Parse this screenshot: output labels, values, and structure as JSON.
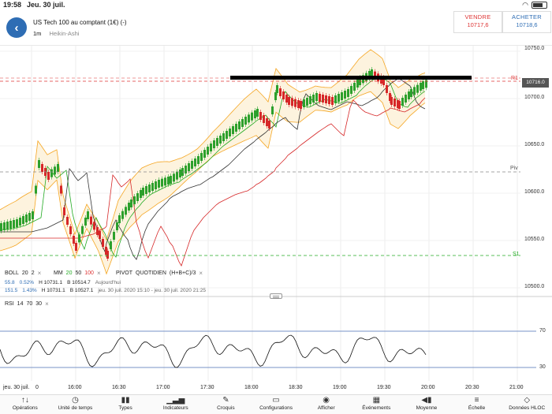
{
  "status": {
    "time": "19:58",
    "date": "Jeu. 30 juil."
  },
  "header": {
    "instrument": "US Tech 100 au comptant (1€) (-)",
    "timeframe": "1m",
    "chart_style": "Heikin-Ashi",
    "sell_label": "VENDRE",
    "sell_price": "10717,6",
    "buy_label": "ACHETER",
    "buy_price": "10718,6"
  },
  "chart": {
    "y_ticks": [
      "10750.0",
      "10700.0",
      "10650.0",
      "10600.0",
      "10550.0",
      "10500.0"
    ],
    "r1_label": "R1",
    "piv_label": "Piv",
    "s1_label": "S1",
    "price_tag": "10716.0",
    "x_ticks": [
      "jeu. 30 juil.",
      "0",
      "16:00",
      "16:30",
      "17:00",
      "17:30",
      "18:00",
      "18:30",
      "19:00",
      "19:30",
      "20:00",
      "20:30",
      "21:00"
    ],
    "rsi_ticks": [
      "70",
      "30"
    ]
  },
  "indicators": {
    "boll_name": "BOLL",
    "boll_p1": "20",
    "boll_p2": "2",
    "mm_name": "MM",
    "mm_p1": "20",
    "mm_p2": "50",
    "mm_p3": "100",
    "pivot_name": "PIVOT",
    "pivot_period": "QUOTIDIEN",
    "pivot_formula": "(H+B+C)/3",
    "close_glyph": "×",
    "stats_row1": {
      "change": "55.8",
      "pct": "0.52%",
      "high": "H 10731.1",
      "low": "B 10514.7",
      "period": "Aujourd'hui"
    },
    "stats_row2": {
      "change": "151.5",
      "pct": "1.43%",
      "high": "H 10731.1",
      "low": "B 10527.1",
      "period": "jeu. 30 juil. 2020 15:10 - jeu. 30 juil. 2020 21:25"
    },
    "rsi_name": "RSI",
    "rsi_p1": "14",
    "rsi_p2": "70",
    "rsi_p3": "30"
  },
  "toolbar": [
    {
      "name": "operations",
      "icon": "↑↓",
      "label": "Opérations"
    },
    {
      "name": "timeunit",
      "icon": "◷",
      "label": "Unité de temps"
    },
    {
      "name": "types",
      "icon": "▮▮",
      "label": "Types"
    },
    {
      "name": "indicators",
      "icon": "▁▃▅",
      "label": "Indicateurs"
    },
    {
      "name": "sketches",
      "icon": "✎",
      "label": "Croquis"
    },
    {
      "name": "configurations",
      "icon": "▭",
      "label": "Configurations"
    },
    {
      "name": "display",
      "icon": "◉",
      "label": "Afficher"
    },
    {
      "name": "events",
      "icon": "▦",
      "label": "Événements"
    },
    {
      "name": "average",
      "icon": "◀▮",
      "label": "Moyenne"
    },
    {
      "name": "scale",
      "icon": "≡",
      "label": "Échelle"
    },
    {
      "name": "ohlc",
      "icon": "◇",
      "label": "Données HLOC"
    }
  ],
  "colors": {
    "accent": "#2e6db4",
    "up": "#2ca02c",
    "down": "#d62728",
    "boll": "#f5a623",
    "r1": "#d33",
    "s1": "#2a2"
  }
}
